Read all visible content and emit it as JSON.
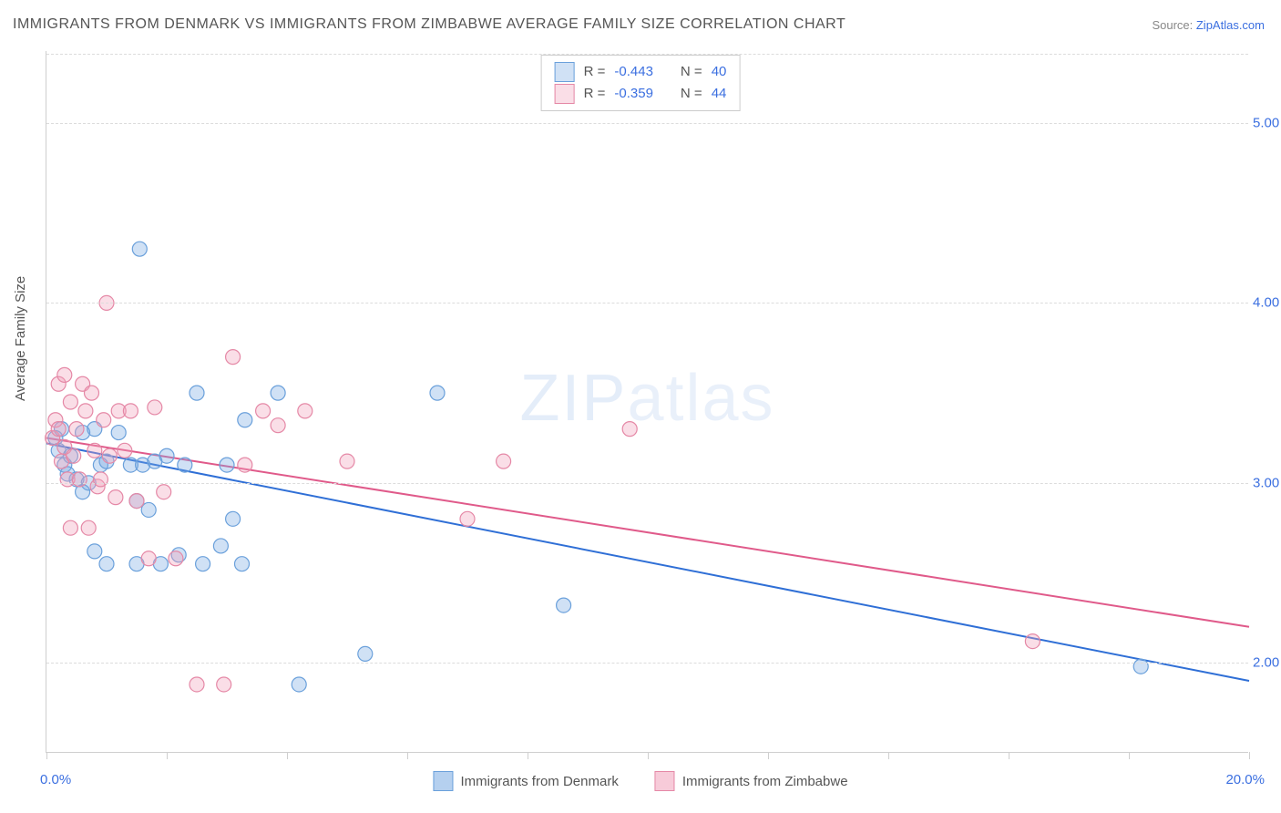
{
  "title": "IMMIGRANTS FROM DENMARK VS IMMIGRANTS FROM ZIMBABWE AVERAGE FAMILY SIZE CORRELATION CHART",
  "source_prefix": "Source: ",
  "source_name": "ZipAtlas.com",
  "ylabel": "Average Family Size",
  "watermark_a": "ZIP",
  "watermark_b": "atlas",
  "chart": {
    "type": "scatter",
    "xlim": [
      0,
      20
    ],
    "ylim": [
      1.5,
      5.4
    ],
    "x_axis_label_left": "0.0%",
    "x_axis_label_right": "20.0%",
    "y_ticks": [
      2.0,
      3.0,
      4.0,
      5.0
    ],
    "y_tick_labels": [
      "2.00",
      "3.00",
      "4.00",
      "5.00"
    ],
    "x_tick_positions": [
      0,
      2,
      4,
      6,
      8,
      10,
      12,
      14,
      16,
      18,
      20
    ],
    "grid_color": "#dcdcdc",
    "axis_color": "#cfcfcf",
    "background_color": "#ffffff",
    "marker_radius": 8,
    "marker_stroke_width": 1.2,
    "line_width": 2,
    "series": [
      {
        "name": "Immigrants from Denmark",
        "color_fill": "rgba(120,170,225,0.35)",
        "color_stroke": "#6aa0db",
        "line_color": "#2f6fd6",
        "R": "-0.443",
        "N": "40",
        "trend": {
          "x1": 0,
          "y1": 3.22,
          "x2": 20,
          "y2": 1.9
        },
        "points": [
          [
            0.15,
            3.25
          ],
          [
            0.2,
            3.18
          ],
          [
            0.25,
            3.3
          ],
          [
            0.3,
            3.1
          ],
          [
            0.35,
            3.05
          ],
          [
            0.4,
            3.15
          ],
          [
            0.5,
            3.02
          ],
          [
            0.6,
            2.95
          ],
          [
            0.6,
            3.28
          ],
          [
            0.7,
            3.0
          ],
          [
            0.8,
            3.3
          ],
          [
            0.8,
            2.62
          ],
          [
            0.9,
            3.1
          ],
          [
            1.0,
            3.12
          ],
          [
            1.0,
            2.55
          ],
          [
            1.2,
            3.28
          ],
          [
            1.4,
            3.1
          ],
          [
            1.5,
            2.9
          ],
          [
            1.5,
            2.55
          ],
          [
            1.55,
            4.3
          ],
          [
            1.6,
            3.1
          ],
          [
            1.7,
            2.85
          ],
          [
            1.8,
            3.12
          ],
          [
            1.9,
            2.55
          ],
          [
            2.0,
            3.15
          ],
          [
            2.2,
            2.6
          ],
          [
            2.3,
            3.1
          ],
          [
            2.5,
            3.5
          ],
          [
            2.6,
            2.55
          ],
          [
            2.9,
            2.65
          ],
          [
            3.0,
            3.1
          ],
          [
            3.1,
            2.8
          ],
          [
            3.25,
            2.55
          ],
          [
            3.3,
            3.35
          ],
          [
            3.85,
            3.5
          ],
          [
            4.2,
            1.88
          ],
          [
            5.3,
            2.05
          ],
          [
            6.5,
            3.5
          ],
          [
            8.6,
            2.32
          ],
          [
            18.2,
            1.98
          ]
        ]
      },
      {
        "name": "Immigrants from Zimbabwe",
        "color_fill": "rgba(240,160,185,0.35)",
        "color_stroke": "#e588a6",
        "line_color": "#e05a8a",
        "R": "-0.359",
        "N": "44",
        "trend": {
          "x1": 0,
          "y1": 3.25,
          "x2": 20,
          "y2": 2.2
        },
        "points": [
          [
            0.1,
            3.25
          ],
          [
            0.15,
            3.35
          ],
          [
            0.2,
            3.3
          ],
          [
            0.2,
            3.55
          ],
          [
            0.25,
            3.12
          ],
          [
            0.3,
            3.2
          ],
          [
            0.3,
            3.6
          ],
          [
            0.35,
            3.02
          ],
          [
            0.4,
            3.45
          ],
          [
            0.4,
            2.75
          ],
          [
            0.45,
            3.15
          ],
          [
            0.5,
            3.3
          ],
          [
            0.55,
            3.02
          ],
          [
            0.6,
            3.55
          ],
          [
            0.65,
            3.4
          ],
          [
            0.7,
            2.75
          ],
          [
            0.75,
            3.5
          ],
          [
            0.8,
            3.18
          ],
          [
            0.85,
            2.98
          ],
          [
            0.9,
            3.02
          ],
          [
            0.95,
            3.35
          ],
          [
            1.0,
            4.0
          ],
          [
            1.05,
            3.15
          ],
          [
            1.15,
            2.92
          ],
          [
            1.2,
            3.4
          ],
          [
            1.3,
            3.18
          ],
          [
            1.4,
            3.4
          ],
          [
            1.5,
            2.9
          ],
          [
            1.7,
            2.58
          ],
          [
            1.8,
            3.42
          ],
          [
            1.95,
            2.95
          ],
          [
            2.15,
            2.58
          ],
          [
            2.5,
            1.88
          ],
          [
            2.95,
            1.88
          ],
          [
            3.1,
            3.7
          ],
          [
            3.3,
            3.1
          ],
          [
            3.6,
            3.4
          ],
          [
            3.85,
            3.32
          ],
          [
            4.3,
            3.4
          ],
          [
            5.0,
            3.12
          ],
          [
            7.0,
            2.8
          ],
          [
            7.6,
            3.12
          ],
          [
            9.7,
            3.3
          ],
          [
            16.4,
            2.12
          ]
        ]
      }
    ]
  },
  "legend_top": {
    "R_label": "R =",
    "N_label": "N ="
  },
  "legend_bottom": [
    {
      "label": "Immigrants from Denmark",
      "fill": "rgba(120,170,225,0.55)",
      "stroke": "#6aa0db"
    },
    {
      "label": "Immigrants from Zimbabwe",
      "fill": "rgba(240,160,185,0.55)",
      "stroke": "#e588a6"
    }
  ]
}
